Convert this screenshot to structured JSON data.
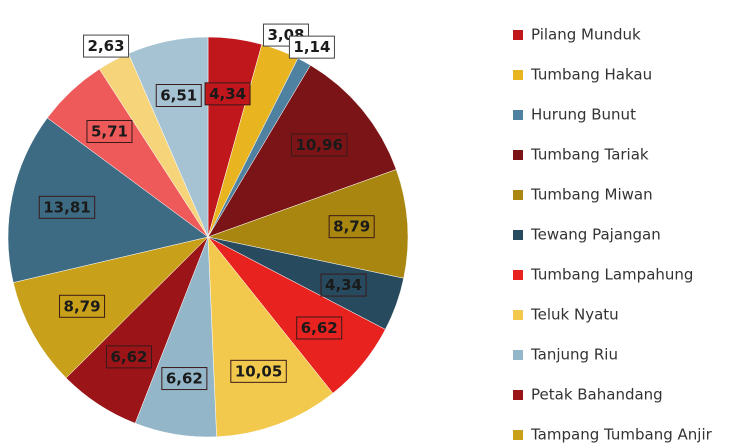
{
  "chart_data": {
    "type": "pie",
    "categories": [
      "Pilang Munduk",
      "Tumbang Hakau",
      "Hurung Bunut",
      "Tumbang Tariak",
      "Tumbang Miwan",
      "Tewang Pajangan",
      "Tumbang Lampahung",
      "Teluk Nyatu",
      "Tanjung Riu",
      "Petak Bahandang",
      "Tampang Tumbang Anjir",
      null,
      null,
      null,
      null
    ],
    "values": [
      4.34,
      3.08,
      1.14,
      10.96,
      8.79,
      4.34,
      6.62,
      10.05,
      6.62,
      6.62,
      8.79,
      13.81,
      5.71,
      2.63,
      6.51
    ],
    "value_labels": [
      "4,34",
      "3,08",
      "1,14",
      "10,96",
      "8,79",
      "4,34",
      "6,62",
      "10,05",
      "6,62",
      "6,62",
      "8,79",
      "13,81",
      "5,71",
      "2,63",
      "6,51"
    ],
    "colors": [
      "#c0171c",
      "#e8b520",
      "#4f81a0",
      "#7b1416",
      "#a8860f",
      "#284a5e",
      "#e8221e",
      "#f2c94c",
      "#93b6c8",
      "#9a1418",
      "#c9a019",
      "#3d6b84",
      "#ee5a5a",
      "#f6d47a",
      "#a6c3d3"
    ]
  }
}
